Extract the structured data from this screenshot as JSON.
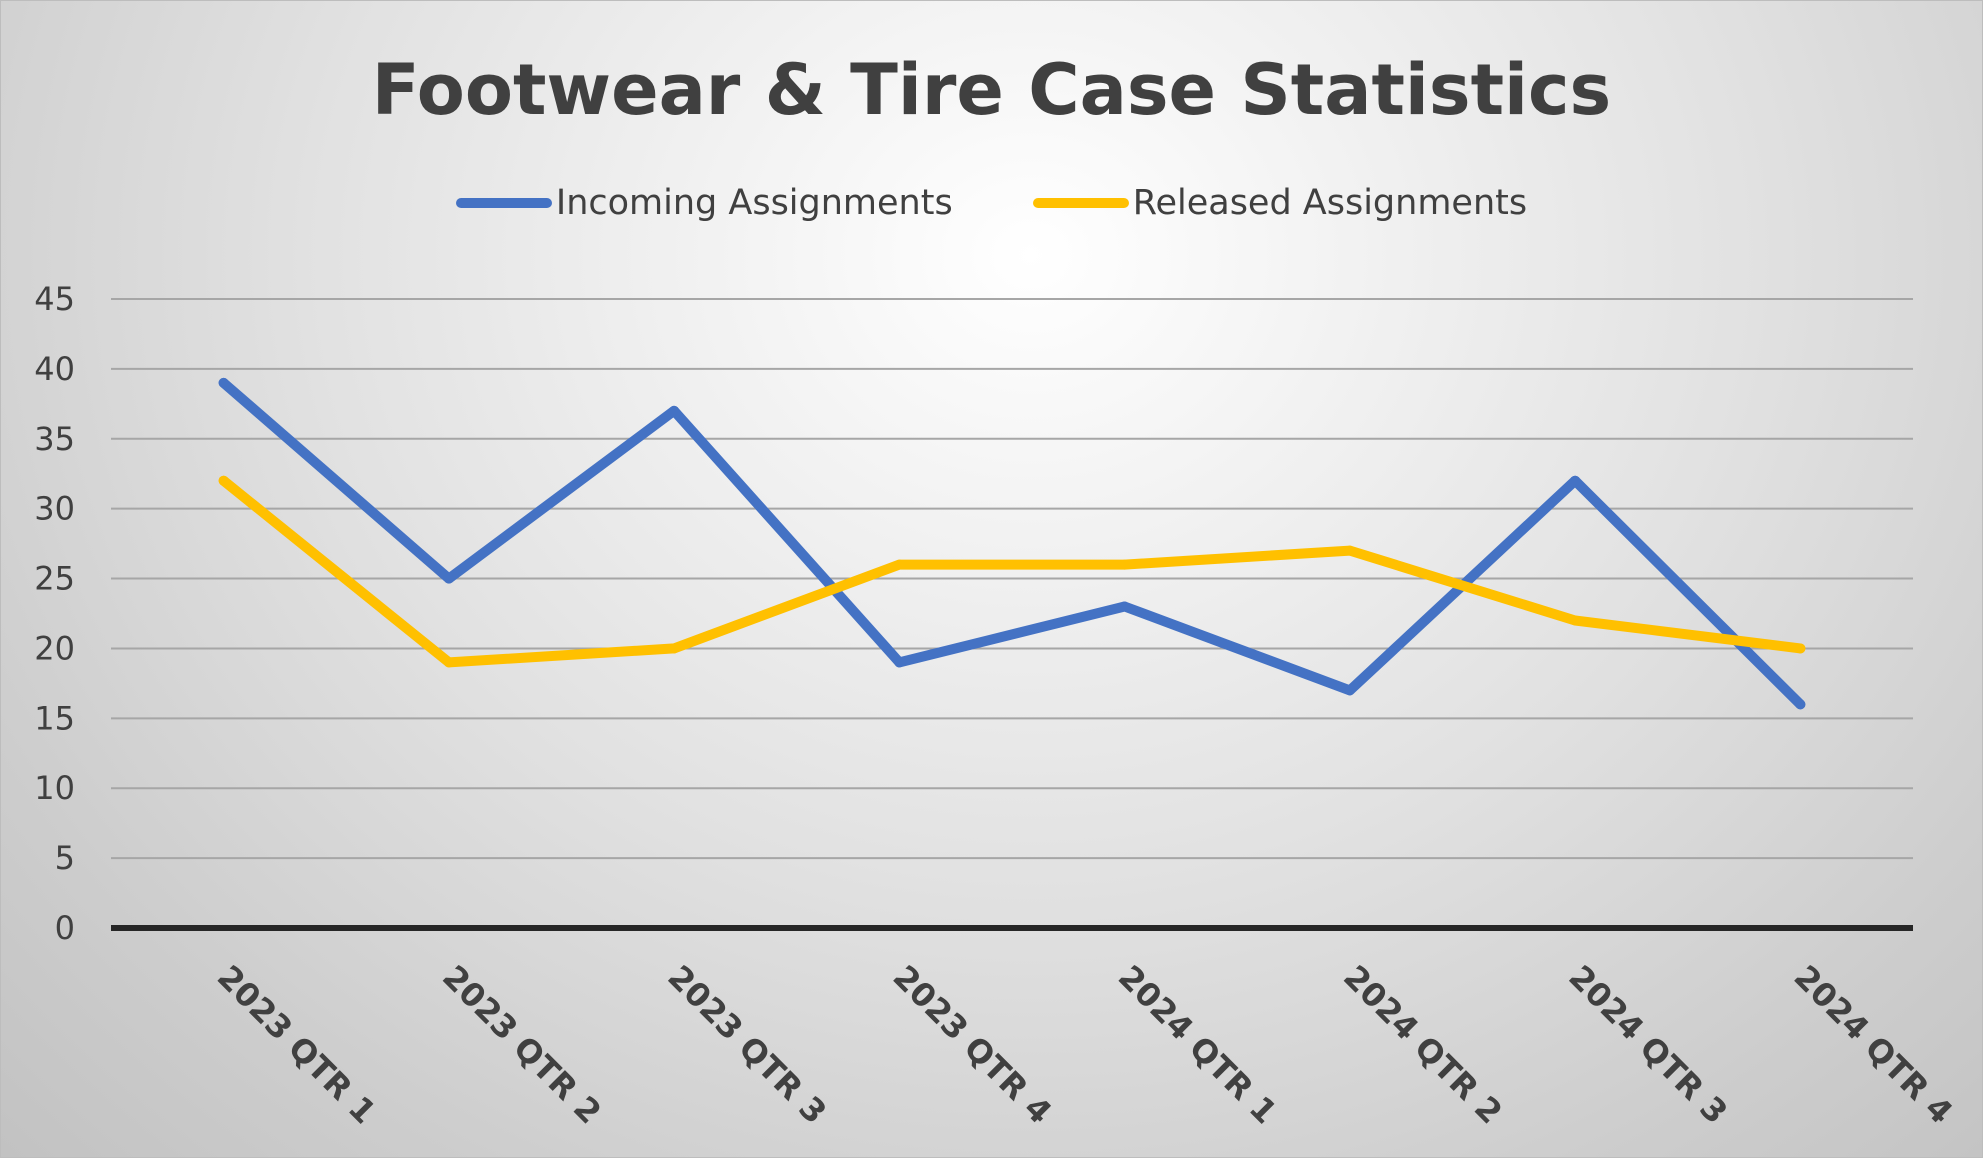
{
  "chart_data": {
    "type": "line",
    "title": "Footwear & Tire Case Statistics",
    "categories": [
      "2023 QTR 1",
      "2023 QTR 2",
      "2023 QTR 3",
      "2023 QTR 4",
      "2024 QTR 1",
      "2024 QTR 2",
      "2024 QTR 3",
      "2024 QTR 4"
    ],
    "series": [
      {
        "name": "Incoming Assignments",
        "color": "#4472C4",
        "values": [
          39,
          25,
          37,
          19,
          23,
          17,
          32,
          16
        ]
      },
      {
        "name": "Released Assignments",
        "color": "#FFC000",
        "values": [
          32,
          19,
          20,
          26,
          26,
          27,
          22,
          20
        ]
      }
    ],
    "ylim": [
      0,
      45
    ],
    "yticks": [
      0,
      5,
      10,
      15,
      20,
      25,
      30,
      35,
      40,
      45
    ],
    "xlabel": "",
    "ylabel": "",
    "grid": true,
    "legend_position": "top"
  }
}
